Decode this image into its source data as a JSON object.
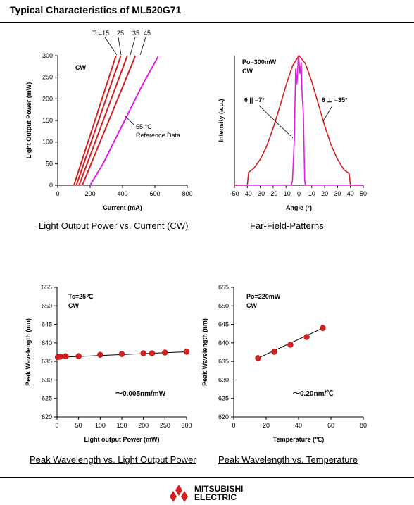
{
  "page": {
    "title": "Typical Characteristics of ML520G71",
    "logo_line1": "MITSUBISHI",
    "logo_line2": "ELECTRIC"
  },
  "colors": {
    "red": "#d42020",
    "magenta": "#e020e0",
    "axis": "#000000"
  },
  "chart_data": [
    {
      "id": "lop",
      "type": "line",
      "caption": "Light Output Power vs. Current (CW)",
      "xlabel": "Current (mA)",
      "ylabel": "Light Output Power (mW)",
      "xlim": [
        0,
        800
      ],
      "ylim": [
        0,
        300
      ],
      "xticks": [
        0,
        200,
        400,
        600,
        800
      ],
      "yticks": [
        0,
        50,
        100,
        150,
        200,
        250,
        300
      ],
      "annotations": [
        "CW",
        "Tc=15",
        "25",
        "35",
        "45",
        "55 °C",
        "Reference Data"
      ],
      "series": [
        {
          "name": "Tc=15",
          "color": "red",
          "x": [
            100,
            360
          ],
          "y": [
            0,
            300
          ]
        },
        {
          "name": "25",
          "color": "red",
          "x": [
            115,
            390
          ],
          "y": [
            0,
            300
          ]
        },
        {
          "name": "35",
          "color": "red",
          "x": [
            132,
            430
          ],
          "y": [
            0,
            300
          ]
        },
        {
          "name": "45",
          "color": "red",
          "x": [
            152,
            480
          ],
          "y": [
            0,
            300
          ]
        },
        {
          "name": "55 °C",
          "color": "magenta",
          "x": [
            200,
            280,
            400,
            520,
            620
          ],
          "y": [
            0,
            50,
            140,
            230,
            298
          ]
        }
      ]
    },
    {
      "id": "ffp",
      "type": "line",
      "caption": "Far-Field-Patterns",
      "xlabel": "Angle (°)",
      "ylabel": "Intensity (a.u.)",
      "xlim": [
        -50,
        50
      ],
      "xticks": [
        -50,
        -40,
        -30,
        -20,
        -10,
        0,
        10,
        20,
        30,
        40,
        50
      ],
      "annotations": [
        "Po=300mW",
        "CW",
        "θ || =7°",
        "θ ⊥ =35°"
      ],
      "series": [
        {
          "name": "θ ⊥",
          "color": "red",
          "x": [
            -50,
            -40,
            -39,
            -35,
            -30,
            -25,
            -20,
            -15,
            -10,
            -5,
            0,
            5,
            10,
            15,
            20,
            25,
            30,
            35,
            39,
            40,
            50
          ],
          "y": [
            0,
            0,
            0.1,
            0.13,
            0.2,
            0.3,
            0.44,
            0.6,
            0.77,
            0.92,
            1.0,
            0.94,
            0.8,
            0.63,
            0.46,
            0.31,
            0.2,
            0.12,
            0.09,
            0,
            0
          ]
        },
        {
          "name": "θ ||",
          "color": "magenta",
          "x": [
            -50,
            -6,
            -5,
            -3.5,
            -2.5,
            -1.5,
            -0.5,
            0,
            0.8,
            1.8,
            2.5,
            3.5,
            4.5,
            5,
            50
          ],
          "y": [
            0,
            0,
            0.03,
            0.36,
            0.9,
            0.78,
            0.98,
            0.97,
            0.86,
            0.95,
            0.7,
            0.55,
            0.04,
            0,
            0
          ]
        }
      ]
    },
    {
      "id": "pw",
      "type": "scatter",
      "caption": "Peak Wavelength vs. Light Output Power",
      "xlabel": "Light output Power (mW)",
      "ylabel": "Peak Wavelength (nm)",
      "xlim": [
        0,
        300
      ],
      "ylim": [
        620,
        655
      ],
      "xticks": [
        0,
        50,
        100,
        150,
        200,
        250,
        300
      ],
      "yticks": [
        620,
        625,
        630,
        635,
        640,
        645,
        650,
        655
      ],
      "annotations": [
        "Tc=25℃",
        "CW",
        "～0.005nm/mW"
      ],
      "x": [
        2,
        8,
        20,
        50,
        100,
        150,
        200,
        220,
        250,
        300
      ],
      "y": [
        636.2,
        636.3,
        636.4,
        636.4,
        636.8,
        637.0,
        637.2,
        637.2,
        637.4,
        637.6
      ],
      "fit": {
        "x": [
          0,
          300
        ],
        "y": [
          636.1,
          637.6
        ]
      }
    },
    {
      "id": "pt",
      "type": "scatter",
      "caption": "Peak Wavelength vs. Temperature",
      "xlabel": "Temperature (℃)",
      "ylabel": "Peak Wavelength (nm)",
      "xlim": [
        0,
        80
      ],
      "ylim": [
        620,
        655
      ],
      "xticks": [
        0,
        20,
        40,
        60,
        80
      ],
      "yticks": [
        620,
        625,
        630,
        635,
        640,
        645,
        650,
        655
      ],
      "annotations": [
        "Po=220mW",
        "CW",
        "～0.20nm/℃"
      ],
      "x": [
        15,
        25,
        35,
        45,
        55
      ],
      "y": [
        635.9,
        637.6,
        639.5,
        641.6,
        644.0
      ],
      "fit": {
        "x": [
          15,
          55
        ],
        "y": [
          635.9,
          644.0
        ]
      }
    }
  ]
}
